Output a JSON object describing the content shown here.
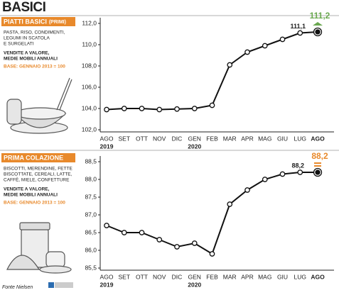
{
  "title": "BASICI",
  "source": "Fonte Nielsen",
  "chart_data": [
    {
      "type": "line",
      "category_title": "PIATTI BASICI",
      "category_note": "(PRIMI)",
      "description": [
        "PASTA, RISO, CONDIMENTI,",
        "LEGUMI IN SCATOLA",
        "E SURGELATI"
      ],
      "measure": [
        "VENDITE A VALORE,",
        "MEDIE MOBILI ANNUALI"
      ],
      "base": "BASE: GENNAIO 2013 = 100",
      "categories": [
        "AGO",
        "SET",
        "OTT",
        "NOV",
        "DIC",
        "GEN",
        "FEB",
        "MAR",
        "APR",
        "MAG",
        "GIU",
        "LUG",
        "AGO"
      ],
      "year_labels": [
        "2019",
        null,
        null,
        null,
        null,
        "2020",
        null,
        null,
        null,
        null,
        null,
        null,
        null
      ],
      "values": [
        103.9,
        104.0,
        104.0,
        103.9,
        103.95,
        104.0,
        104.3,
        108.1,
        109.3,
        109.9,
        110.5,
        111.1,
        111.2
      ],
      "value_labels": [
        null,
        null,
        null,
        null,
        null,
        null,
        null,
        null,
        null,
        null,
        null,
        "111,1",
        "111,2"
      ],
      "color": "#111111",
      "highlight_color": "#6aa84f",
      "ylim": [
        102,
        112
      ],
      "yticks": [
        {
          "value": 102,
          "label": "102,0"
        },
        {
          "value": 104,
          "label": "104,0"
        },
        {
          "value": 106,
          "label": "106,0"
        },
        {
          "value": 108,
          "label": "108,0"
        },
        {
          "value": 110,
          "label": "110,0"
        },
        {
          "value": 112,
          "label": "112,0"
        }
      ]
    },
    {
      "type": "line",
      "category_title": "PRIMA COLAZIONE",
      "description": [
        "BISCOTTI, MERENDINE, FETTE",
        "BISCOTTATE, CEREALI, LATTE,",
        "CAFFÈ, MIELE, CONFETTURE"
      ],
      "measure": [
        "VENDITE A VALORE,",
        "MEDIE MOBILI ANNUALI"
      ],
      "base": "BASE: GENNAIO 2013 = 100",
      "categories": [
        "AGO",
        "SET",
        "OTT",
        "NOV",
        "DIC",
        "GEN",
        "FEB",
        "MAR",
        "APR",
        "MAG",
        "GIU",
        "LUG",
        "AGO"
      ],
      "year_labels": [
        "2019",
        null,
        null,
        null,
        null,
        "2020",
        null,
        null,
        null,
        null,
        null,
        null,
        null
      ],
      "values": [
        86.7,
        86.5,
        86.5,
        86.3,
        86.1,
        86.2,
        85.9,
        87.3,
        87.7,
        88.0,
        88.15,
        88.2,
        88.2
      ],
      "value_labels": [
        null,
        null,
        null,
        null,
        null,
        null,
        null,
        null,
        null,
        null,
        null,
        "88,2",
        "88,2"
      ],
      "color": "#111111",
      "highlight_color": "#e8892b",
      "ylim": [
        85.5,
        88.5
      ],
      "yticks": [
        {
          "value": 85.5,
          "label": "85,5"
        },
        {
          "value": 86,
          "label": "86,0"
        },
        {
          "value": 86.5,
          "label": "86,5"
        },
        {
          "value": 87,
          "label": "87,0"
        },
        {
          "value": 87.5,
          "label": "87,5"
        },
        {
          "value": 88,
          "label": "88,0"
        },
        {
          "value": 88.5,
          "label": "88,5"
        }
      ]
    }
  ]
}
